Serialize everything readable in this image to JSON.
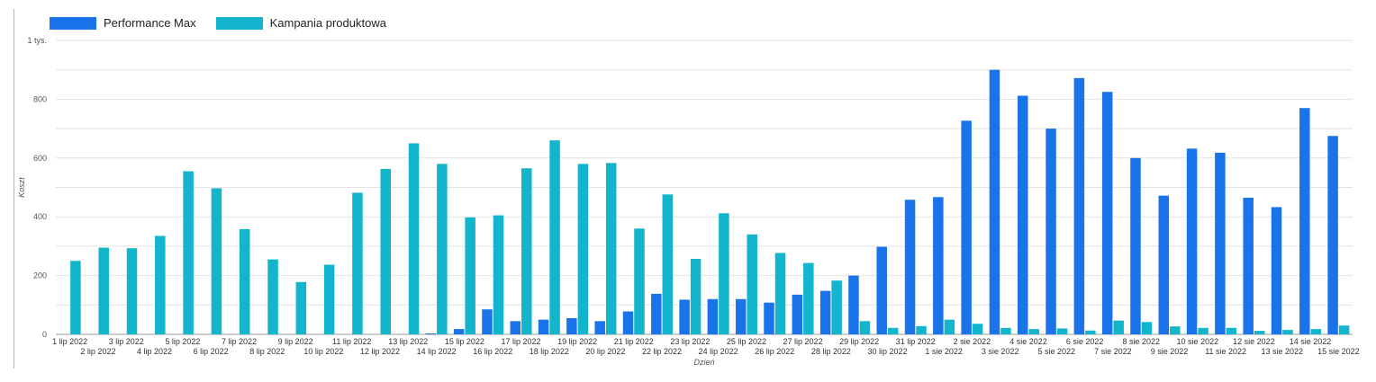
{
  "chart_data": {
    "type": "bar",
    "xlabel": "Dzień",
    "ylabel": "Koszt",
    "ylim": [
      0,
      1000
    ],
    "yticks": [
      "0",
      "200",
      "400",
      "600",
      "800",
      "1 tys."
    ],
    "grid": true,
    "legend_position": "top-left",
    "categories": [
      "1 lip 2022",
      "2 lip 2022",
      "3 lip 2022",
      "4 lip 2022",
      "5 lip 2022",
      "6 lip 2022",
      "7 lip 2022",
      "8 lip 2022",
      "9 lip 2022",
      "10 lip 2022",
      "11 lip 2022",
      "12 lip 2022",
      "13 lip 2022",
      "14 lip 2022",
      "15 lip 2022",
      "16 lip 2022",
      "17 lip 2022",
      "18 lip 2022",
      "19 lip 2022",
      "20 lip 2022",
      "21 lip 2022",
      "22 lip 2022",
      "23 lip 2022",
      "24 lip 2022",
      "25 lip 2022",
      "26 lip 2022",
      "27 lip 2022",
      "28 lip 2022",
      "29 lip 2022",
      "30 lip 2022",
      "31 lip 2022",
      "1 sie 2022",
      "2 sie 2022",
      "3 sie 2022",
      "4 sie 2022",
      "5 sie 2022",
      "6 sie 2022",
      "7 sie 2022",
      "8 sie 2022",
      "9 sie 2022",
      "10 sie 2022",
      "11 sie 2022",
      "12 sie 2022",
      "13 sie 2022",
      "14 sie 2022",
      "15 sie 2022"
    ],
    "series": [
      {
        "name": "Performance Max",
        "color": "#1a73e8",
        "values": [
          0,
          0,
          0,
          0,
          0,
          0,
          0,
          0,
          0,
          0,
          0,
          0,
          0,
          3,
          18,
          85,
          45,
          50,
          55,
          45,
          78,
          138,
          118,
          120,
          120,
          108,
          135,
          148,
          200,
          298,
          458,
          467,
          727,
          900,
          812,
          700,
          872,
          825,
          600,
          472,
          632,
          618,
          465,
          433,
          770,
          675
        ]
      },
      {
        "name": "Kampania produktowa",
        "color": "#12b5cb",
        "values": [
          250,
          295,
          293,
          335,
          555,
          497,
          358,
          255,
          178,
          237,
          482,
          563,
          650,
          580,
          398,
          405,
          565,
          660,
          580,
          583,
          360,
          476,
          257,
          412,
          340,
          277,
          243,
          183,
          45,
          22,
          28,
          50,
          36,
          22,
          18,
          20,
          13,
          47,
          42,
          27,
          22,
          22,
          12,
          15,
          18,
          30
        ]
      }
    ]
  }
}
